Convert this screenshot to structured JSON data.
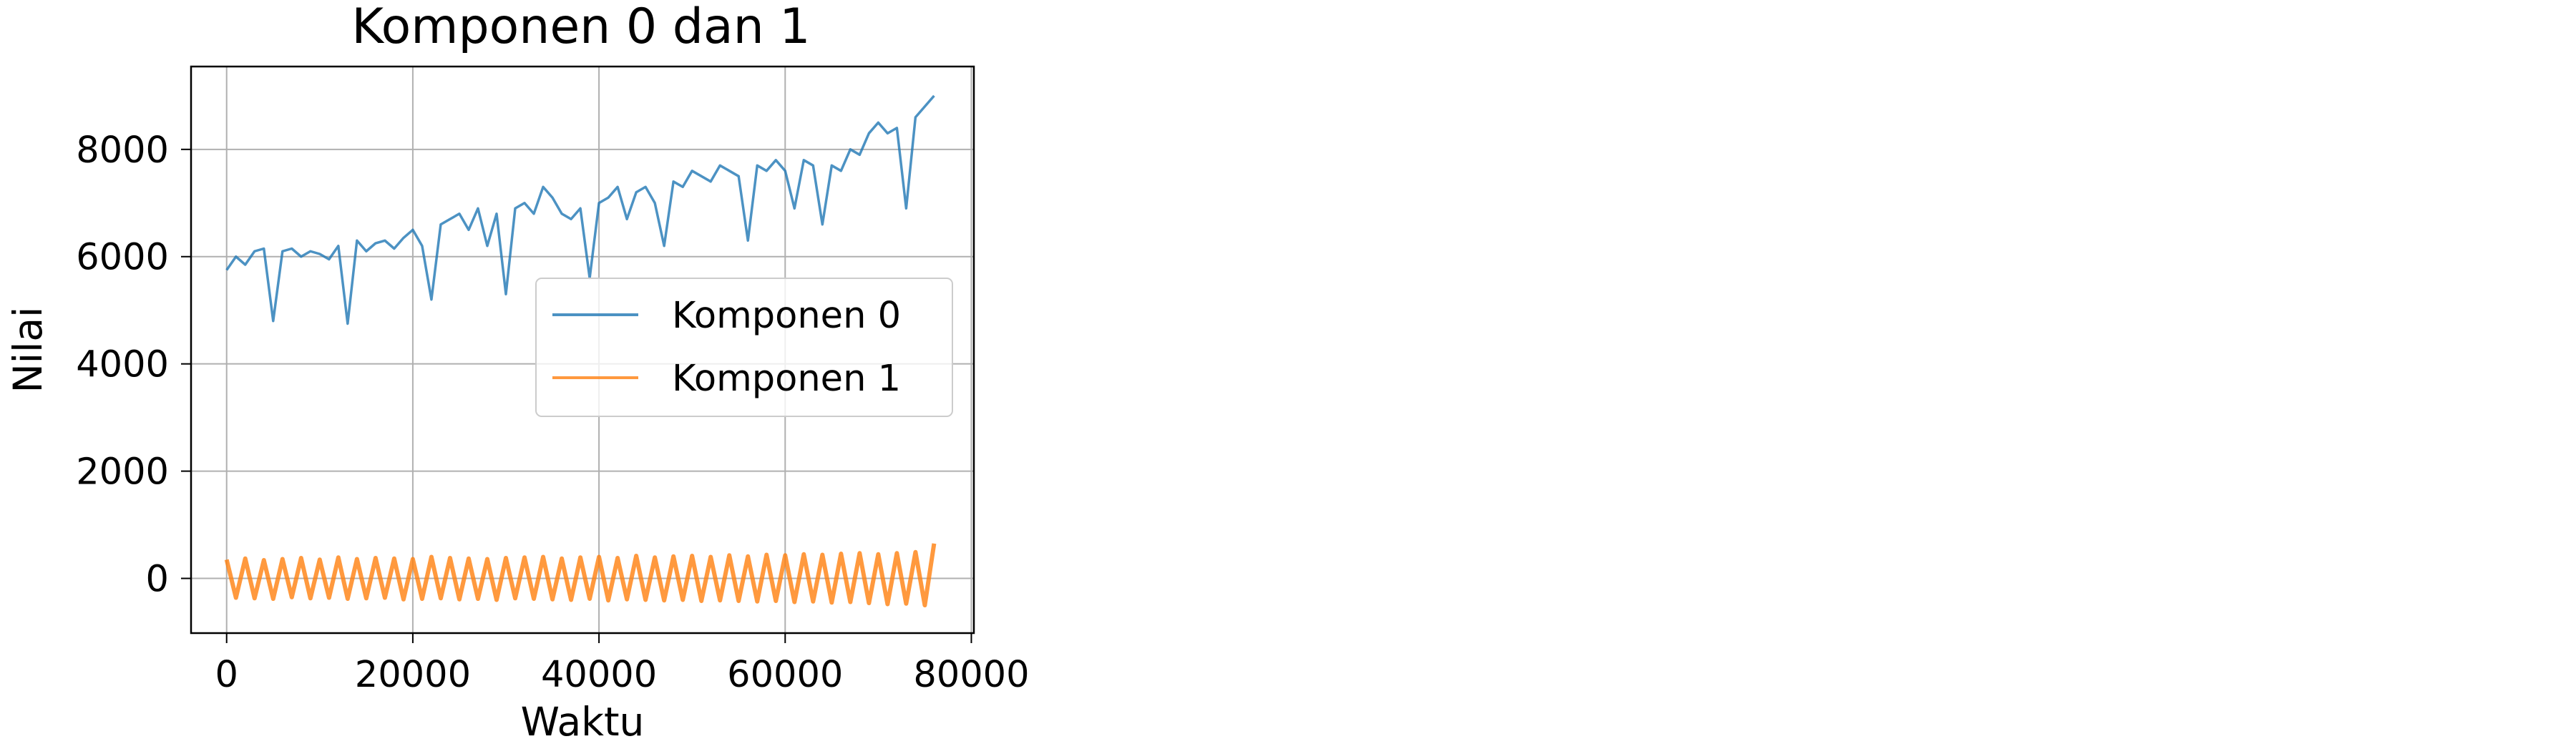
{
  "chart_data": {
    "type": "line",
    "title": "Komponen 0 dan 1",
    "xlabel": "Waktu",
    "ylabel": "Nilai",
    "x": [
      0,
      1000,
      2000,
      3000,
      4000,
      5000,
      6000,
      7000,
      8000,
      9000,
      10000,
      11000,
      12000,
      13000,
      14000,
      15000,
      16000,
      17000,
      18000,
      19000,
      20000,
      21000,
      22000,
      23000,
      24000,
      25000,
      26000,
      27000,
      28000,
      29000,
      30000,
      31000,
      32000,
      33000,
      34000,
      35000,
      36000,
      37000,
      38000,
      39000,
      40000,
      41000,
      42000,
      43000,
      44000,
      45000,
      46000,
      47000,
      48000,
      49000,
      50000,
      51000,
      52000,
      53000,
      54000,
      55000,
      56000,
      57000,
      58000,
      59000,
      60000,
      61000,
      62000,
      63000,
      64000,
      65000,
      66000,
      67000,
      68000,
      69000,
      70000,
      71000,
      72000,
      73000,
      74000,
      75000,
      76000
    ],
    "series": [
      {
        "name": "Komponen 0",
        "color": "#1f77b4",
        "values": [
          5750,
          6000,
          5850,
          6100,
          6150,
          4800,
          6100,
          6150,
          6000,
          6100,
          6050,
          5950,
          6200,
          4750,
          6300,
          6100,
          6250,
          6300,
          6150,
          6350,
          6500,
          6200,
          5200,
          6600,
          6700,
          6800,
          6500,
          6900,
          6200,
          6800,
          5300,
          6900,
          7000,
          6800,
          7300,
          7100,
          6800,
          6700,
          6900,
          5600,
          7000,
          7100,
          7300,
          6700,
          7200,
          7300,
          7000,
          6200,
          7400,
          7300,
          7600,
          7500,
          7400,
          7700,
          7600,
          7500,
          6300,
          7700,
          7600,
          7800,
          7600,
          6900,
          7800,
          7700,
          6600,
          7700,
          7600,
          8000,
          7900,
          8300,
          8500,
          8300,
          8400,
          6900,
          8600,
          8800,
          9000
        ]
      },
      {
        "name": "Komponen 1",
        "color": "#ff7f0e",
        "values": [
          350,
          -360,
          370,
          -370,
          340,
          -380,
          360,
          -350,
          380,
          -370,
          350,
          -360,
          390,
          -380,
          360,
          -370,
          380,
          -360,
          370,
          -390,
          360,
          -380,
          400,
          -370,
          380,
          -390,
          370,
          -380,
          360,
          -400,
          380,
          -370,
          390,
          -380,
          400,
          -390,
          370,
          -400,
          390,
          -380,
          400,
          -410,
          380,
          -390,
          420,
          -400,
          390,
          -410,
          410,
          -400,
          420,
          -420,
          400,
          -410,
          430,
          -420,
          410,
          -430,
          440,
          -420,
          430,
          -440,
          450,
          -430,
          440,
          -450,
          460,
          -440,
          470,
          -460,
          450,
          -480,
          470,
          -470,
          490,
          -500,
          650
        ]
      }
    ],
    "xlim": [
      -3822,
      80272
    ],
    "ylim": [
      -1020,
      9545
    ],
    "xticks": [
      0,
      20000,
      40000,
      60000,
      80000
    ],
    "yticks": [
      0,
      2000,
      4000,
      6000,
      8000
    ],
    "grid": true,
    "legend": "center right"
  }
}
